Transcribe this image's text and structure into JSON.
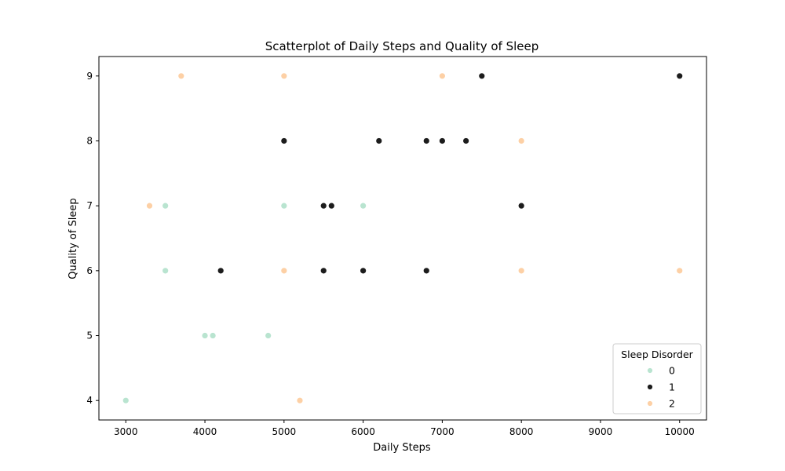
{
  "chart_data": {
    "type": "scatter",
    "title": "Scatterplot of Daily Steps and Quality of Sleep",
    "xlabel": "Daily Steps",
    "ylabel": "Quality of Sleep",
    "xlim": [
      2660,
      10340
    ],
    "ylim": [
      3.7,
      9.3
    ],
    "xticks": [
      3000,
      4000,
      5000,
      6000,
      7000,
      8000,
      9000,
      10000
    ],
    "yticks": [
      4,
      5,
      6,
      7,
      8,
      9
    ],
    "grid": false,
    "legend": {
      "title": "Sleep Disorder",
      "placement": "bottom-right"
    },
    "series": [
      {
        "name": "0",
        "color": "#b9e4d0",
        "points": [
          [
            3000,
            4
          ],
          [
            4000,
            5
          ],
          [
            4100,
            5
          ],
          [
            4800,
            5
          ],
          [
            3500,
            6
          ],
          [
            3500,
            7
          ],
          [
            5000,
            7
          ],
          [
            6000,
            7
          ]
        ]
      },
      {
        "name": "1",
        "color": "#1c1c1c",
        "points": [
          [
            7500,
            9
          ],
          [
            10000,
            9
          ],
          [
            5000,
            8
          ],
          [
            6200,
            8
          ],
          [
            6800,
            8
          ],
          [
            7000,
            8
          ],
          [
            7300,
            8
          ],
          [
            5500,
            7
          ],
          [
            5600,
            7
          ],
          [
            8000,
            7
          ],
          [
            4200,
            6
          ],
          [
            5500,
            6
          ],
          [
            6000,
            6
          ],
          [
            6800,
            6
          ]
        ]
      },
      {
        "name": "2",
        "color": "#fdd0a5",
        "points": [
          [
            3700,
            9
          ],
          [
            5000,
            9
          ],
          [
            7000,
            9
          ],
          [
            8000,
            8
          ],
          [
            3300,
            7
          ],
          [
            5000,
            6
          ],
          [
            8000,
            6
          ],
          [
            10000,
            6
          ],
          [
            5200,
            4
          ]
        ]
      }
    ]
  }
}
